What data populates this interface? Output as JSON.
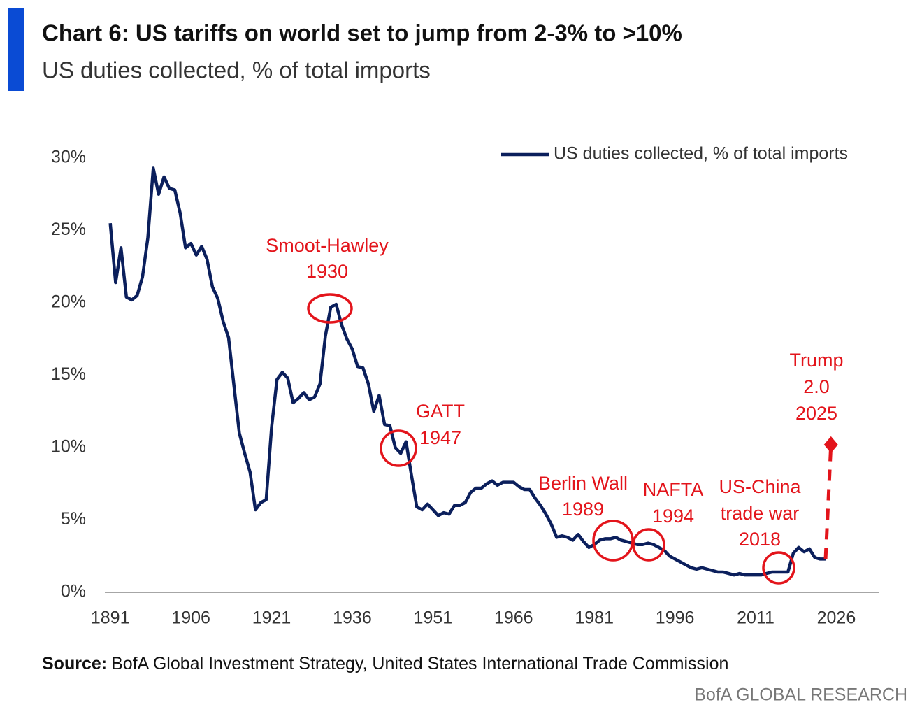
{
  "chart_data": {
    "type": "line",
    "title": "Chart 6: US tariffs on world set to jump from 2-3% to >10%",
    "subtitle": "US duties collected, % of total imports",
    "x": [
      1891,
      1892,
      1893,
      1894,
      1895,
      1896,
      1897,
      1898,
      1899,
      1900,
      1901,
      1902,
      1903,
      1904,
      1905,
      1906,
      1907,
      1908,
      1909,
      1910,
      1911,
      1912,
      1913,
      1914,
      1915,
      1916,
      1917,
      1918,
      1919,
      1920,
      1921,
      1922,
      1923,
      1924,
      1925,
      1926,
      1927,
      1928,
      1929,
      1930,
      1931,
      1932,
      1933,
      1934,
      1935,
      1936,
      1937,
      1938,
      1939,
      1940,
      1941,
      1942,
      1943,
      1944,
      1945,
      1946,
      1947,
      1948,
      1949,
      1950,
      1951,
      1952,
      1953,
      1954,
      1955,
      1956,
      1957,
      1958,
      1959,
      1960,
      1961,
      1962,
      1963,
      1964,
      1965,
      1966,
      1967,
      1968,
      1969,
      1970,
      1971,
      1972,
      1973,
      1974,
      1975,
      1976,
      1977,
      1978,
      1979,
      1980,
      1981,
      1982,
      1983,
      1984,
      1985,
      1986,
      1987,
      1988,
      1989,
      1990,
      1991,
      1992,
      1993,
      1994,
      1995,
      1996,
      1997,
      1998,
      1999,
      2000,
      2001,
      2002,
      2003,
      2004,
      2005,
      2006,
      2007,
      2008,
      2009,
      2010,
      2011,
      2012,
      2013,
      2014,
      2015,
      2016,
      2017,
      2018,
      2019,
      2020,
      2021,
      2022,
      2023,
      2024
    ],
    "series": [
      {
        "name": "US duties collected, % of total imports",
        "color": "#0b1f5c",
        "values": [
          25.5,
          21.4,
          23.8,
          20.4,
          20.2,
          20.5,
          21.8,
          24.5,
          29.3,
          27.5,
          28.7,
          27.9,
          27.8,
          26.2,
          23.8,
          24.1,
          23.3,
          23.9,
          23.0,
          21.1,
          20.3,
          18.7,
          17.6,
          14.3,
          11.0,
          9.6,
          8.3,
          5.7,
          6.2,
          6.4,
          11.4,
          14.7,
          15.2,
          14.8,
          13.1,
          13.4,
          13.8,
          13.3,
          13.5,
          14.4,
          17.7,
          19.7,
          19.9,
          18.5,
          17.5,
          16.8,
          15.6,
          15.5,
          14.4,
          12.5,
          13.6,
          11.6,
          11.5,
          10.0,
          9.6,
          10.4,
          8.1,
          5.9,
          5.7,
          6.1,
          5.7,
          5.3,
          5.5,
          5.4,
          6.0,
          6.0,
          6.2,
          6.9,
          7.2,
          7.2,
          7.5,
          7.7,
          7.4,
          7.6,
          7.6,
          7.6,
          7.3,
          7.1,
          7.1,
          6.5,
          6.0,
          5.4,
          4.7,
          3.8,
          3.9,
          3.8,
          3.6,
          4.0,
          3.5,
          3.1,
          3.3,
          3.6,
          3.7,
          3.7,
          3.8,
          3.6,
          3.5,
          3.4,
          3.3,
          3.3,
          3.4,
          3.3,
          3.1,
          2.9,
          2.5,
          2.3,
          2.1,
          1.9,
          1.7,
          1.6,
          1.7,
          1.6,
          1.5,
          1.4,
          1.4,
          1.3,
          1.2,
          1.3,
          1.2,
          1.2,
          1.2,
          1.2,
          1.3,
          1.4,
          1.4,
          1.4,
          1.4,
          2.7,
          3.1,
          2.8,
          3.0,
          2.4,
          2.3,
          2.3
        ]
      }
    ],
    "projection": {
      "x": [
        2024,
        2025
      ],
      "values": [
        2.3,
        10.2
      ],
      "color": "#e3141b"
    },
    "xlim": [
      1890,
      2034
    ],
    "xticks": [
      1891,
      1906,
      1921,
      1936,
      1951,
      1966,
      1981,
      1996,
      2011,
      2026
    ],
    "ylim": [
      0,
      30
    ],
    "yticks": [
      {
        "value": 0,
        "label": "0%"
      },
      {
        "value": 5,
        "label": "5%"
      },
      {
        "value": 10,
        "label": "10%"
      },
      {
        "value": 15,
        "label": "15%"
      },
      {
        "value": 20,
        "label": "20%"
      },
      {
        "value": 25,
        "label": "25%"
      },
      {
        "value": 30,
        "label": "30%"
      }
    ],
    "legend": "top-right",
    "annotations": [
      {
        "lines": [
          "Smoot-Hawley",
          "1930"
        ]
      },
      {
        "lines": [
          "GATT",
          "1947"
        ]
      },
      {
        "lines": [
          "Berlin Wall",
          "1989"
        ]
      },
      {
        "lines": [
          "NAFTA",
          "1994"
        ]
      },
      {
        "lines": [
          "US-China",
          "trade war",
          "2018"
        ]
      },
      {
        "lines": [
          "Trump",
          "2.0",
          "2025"
        ]
      }
    ],
    "source_label": "Source:",
    "source": "BofA Global Investment Strategy, United States International Trade Commission",
    "branding": "BofA GLOBAL RESEARCH"
  }
}
